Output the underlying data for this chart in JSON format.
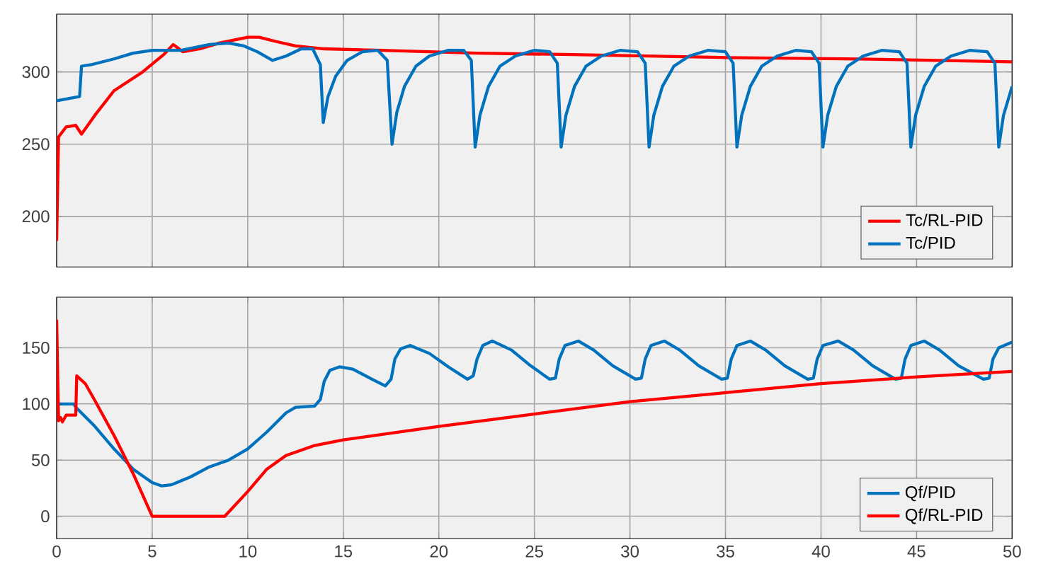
{
  "chart_data": [
    {
      "type": "line",
      "xlim": [
        0,
        50
      ],
      "ylim": [
        165,
        340
      ],
      "xticks": [
        0,
        5,
        10,
        15,
        20,
        25,
        30,
        35,
        40,
        45,
        50
      ],
      "yticks": [
        200,
        250,
        300
      ],
      "grid": true,
      "legend": "bottom right",
      "tick_labels": "y",
      "series": [
        {
          "name": "Tc/RL-PID",
          "color": "#ff0000",
          "x": [
            0,
            0.1,
            0.5,
            1.0,
            1.3,
            2,
            3,
            4.5,
            5.6,
            6.1,
            6.6,
            7.5,
            8.5,
            10,
            10.6,
            11.5,
            12.5,
            14,
            17,
            22,
            27,
            35,
            42,
            50
          ],
          "values": [
            183,
            255,
            262,
            263,
            257,
            270,
            287,
            300,
            312,
            319,
            314,
            316,
            320,
            324,
            324,
            321,
            318,
            316,
            315,
            313,
            312,
            310,
            309,
            307
          ]
        },
        {
          "name": "Tc/PID",
          "color": "#0072bd",
          "x": [
            0,
            1.2,
            1.3,
            1.8,
            3,
            4,
            5,
            6.5,
            8,
            9,
            9.8,
            10.5,
            11.3,
            12,
            12.8,
            13.4,
            13.8,
            13.95,
            14.2,
            14.6,
            15.2,
            16,
            16.8,
            17.3,
            17.55,
            17.8,
            18.2,
            18.8,
            19.5,
            20.5,
            21.3,
            21.7,
            21.9,
            22.15,
            22.6,
            23.2,
            24.0,
            25.0,
            25.8,
            26.2,
            26.4,
            26.65,
            27.1,
            27.7,
            28.5,
            29.5,
            30.4,
            30.8,
            31.0,
            31.25,
            31.7,
            32.3,
            33.1,
            34.1,
            35.0,
            35.4,
            35.6,
            35.85,
            36.3,
            36.9,
            37.7,
            38.7,
            39.5,
            39.9,
            40.1,
            40.35,
            40.8,
            41.4,
            42.2,
            43.2,
            44.1,
            44.5,
            44.7,
            44.95,
            45.4,
            46.0,
            46.8,
            47.8,
            48.7,
            49.1,
            49.3,
            49.55,
            50
          ],
          "values": [
            280,
            283,
            304,
            305,
            309,
            313,
            315,
            315,
            319,
            320,
            318,
            314,
            308,
            311,
            316,
            316,
            305,
            265,
            283,
            297,
            308,
            314,
            315,
            308,
            250,
            272,
            290,
            304,
            311,
            315,
            315,
            308,
            248,
            270,
            290,
            304,
            311,
            315,
            314,
            306,
            248,
            270,
            290,
            304,
            311,
            315,
            314,
            306,
            248,
            270,
            290,
            304,
            311,
            315,
            314,
            306,
            248,
            270,
            290,
            304,
            311,
            315,
            314,
            306,
            248,
            270,
            290,
            304,
            311,
            315,
            314,
            306,
            248,
            270,
            290,
            304,
            311,
            315,
            314,
            306,
            248,
            270,
            290
          ]
        }
      ]
    },
    {
      "type": "line",
      "xlim": [
        0,
        50
      ],
      "ylim": [
        -20,
        195
      ],
      "xticks": [
        0,
        5,
        10,
        15,
        20,
        25,
        30,
        35,
        40,
        45,
        50
      ],
      "yticks": [
        0,
        50,
        100,
        150
      ],
      "grid": true,
      "legend": "bottom right",
      "series": [
        {
          "name": "Qf/PID",
          "color": "#0072bd",
          "x": [
            0,
            0.9,
            1.0,
            2,
            3,
            4,
            5,
            5.5,
            6,
            7,
            8,
            9,
            10,
            11,
            12,
            12.5,
            13.5,
            13.8,
            14.0,
            14.3,
            14.8,
            15.5,
            16.5,
            17.2,
            17.5,
            17.7,
            18.0,
            18.5,
            19.5,
            20.5,
            21.5,
            21.8,
            22.0,
            22.3,
            22.8,
            23.8,
            24.8,
            25.8,
            26.1,
            26.3,
            26.6,
            27.3,
            28.1,
            29.1,
            30.3,
            30.6,
            30.8,
            31.1,
            31.8,
            32.6,
            33.6,
            34.8,
            35.1,
            35.3,
            35.6,
            36.3,
            37.1,
            38.1,
            39.3,
            39.6,
            39.8,
            40.1,
            40.9,
            41.7,
            42.7,
            43.9,
            44.2,
            44.4,
            44.7,
            45.4,
            46.2,
            47.2,
            48.5,
            48.8,
            49.0,
            49.3,
            50
          ],
          "values": [
            100,
            100,
            97,
            80,
            60,
            42,
            30,
            27,
            28,
            35,
            44,
            50,
            60,
            75,
            92,
            97,
            98,
            104,
            120,
            130,
            133,
            131,
            122,
            116,
            122,
            140,
            149,
            152,
            145,
            133,
            122,
            125,
            140,
            152,
            156,
            148,
            134,
            122,
            123,
            140,
            152,
            156,
            148,
            134,
            122,
            123,
            140,
            152,
            156,
            148,
            134,
            122,
            123,
            140,
            152,
            156,
            148,
            134,
            122,
            123,
            140,
            152,
            156,
            148,
            134,
            122,
            123,
            140,
            152,
            156,
            148,
            134,
            122,
            123,
            140,
            150,
            155
          ]
        },
        {
          "name": "Qf/RL-PID",
          "color": "#ff0000",
          "x": [
            0,
            0.1,
            0.2,
            0.3,
            0.5,
            1.0,
            1.05,
            1.5,
            2,
            3,
            4,
            5,
            8.8,
            10,
            11,
            12,
            13.5,
            15,
            20,
            25,
            30,
            35,
            40,
            45,
            50
          ],
          "values": [
            175,
            85,
            88,
            84,
            90,
            90,
            125,
            118,
            103,
            72,
            38,
            0,
            0,
            22,
            42,
            54,
            63,
            68,
            80,
            91,
            102,
            110,
            118,
            124,
            129
          ]
        }
      ]
    }
  ]
}
